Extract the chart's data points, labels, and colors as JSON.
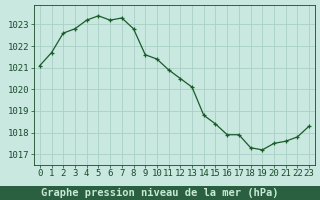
{
  "x": [
    0,
    1,
    2,
    3,
    4,
    5,
    6,
    7,
    8,
    9,
    10,
    11,
    12,
    13,
    14,
    15,
    16,
    17,
    18,
    19,
    20,
    21,
    22,
    23
  ],
  "y": [
    1021.1,
    1021.7,
    1022.6,
    1022.8,
    1023.2,
    1023.4,
    1023.2,
    1023.3,
    1022.8,
    1021.6,
    1021.4,
    1020.9,
    1020.5,
    1020.1,
    1018.8,
    1018.4,
    1017.9,
    1017.9,
    1017.3,
    1017.2,
    1017.5,
    1017.6,
    1017.8,
    1018.3
  ],
  "title": "Graphe pression niveau de la mer (hPa)",
  "xlim": [
    -0.5,
    23.5
  ],
  "ylim": [
    1016.5,
    1023.9
  ],
  "yticks": [
    1017,
    1018,
    1019,
    1020,
    1021,
    1022,
    1023
  ],
  "xticks": [
    0,
    1,
    2,
    3,
    4,
    5,
    6,
    7,
    8,
    9,
    10,
    11,
    12,
    13,
    14,
    15,
    16,
    17,
    18,
    19,
    20,
    21,
    22,
    23
  ],
  "line_color": "#1a5c2a",
  "marker": "+",
  "bg_color": "#c8e8e0",
  "grid_color": "#a8d0c8",
  "label_color": "#1a4a2a",
  "title_bg_color": "#2a6040",
  "title_text_color": "#c8e8d8",
  "tick_color": "#1a4a2a",
  "title_fontsize": 7.5,
  "tick_fontsize": 6.5,
  "figsize": [
    3.2,
    2.0
  ],
  "dpi": 100
}
